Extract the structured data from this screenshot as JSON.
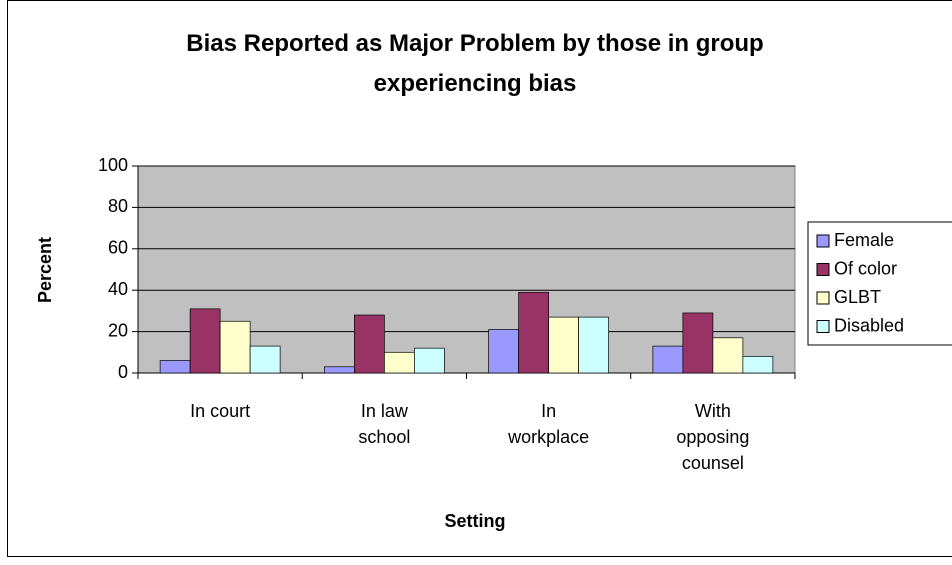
{
  "chart_data": {
    "type": "bar",
    "title": "Bias Reported as Major Problem by those in group experiencing bias",
    "x_label": "Setting",
    "y_label": "Percent",
    "categories": [
      "In court",
      "In law school",
      "In workplace",
      "With opposing counsel"
    ],
    "series": [
      {
        "name": "Female",
        "color": "#9999ff",
        "values": [
          6,
          3,
          21,
          13
        ]
      },
      {
        "name": "Of color",
        "color": "#993366",
        "values": [
          31,
          28,
          39,
          29
        ]
      },
      {
        "name": "GLBT",
        "color": "#ffffcc",
        "values": [
          25,
          10,
          27,
          17
        ]
      },
      {
        "name": "Disabled",
        "color": "#ccffff",
        "values": [
          13,
          12,
          27,
          8
        ]
      }
    ],
    "ylim": [
      0,
      100
    ],
    "yticks": [
      0,
      20,
      40,
      60,
      80,
      100
    ],
    "grid": true,
    "legend": "right"
  }
}
